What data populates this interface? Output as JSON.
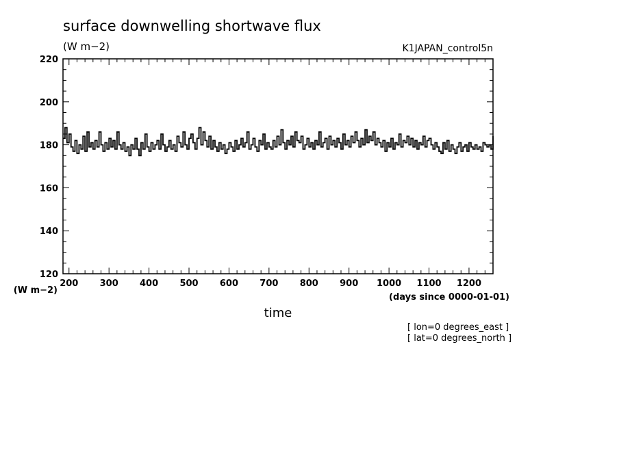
{
  "chart_data": {
    "type": "line",
    "title": "surface downwelling shortwave flux",
    "subtitle_units": "(W m−2)",
    "experiment": "K1JAPAN_control5n",
    "xlabel": "time",
    "x_units": "(days since 0000-01-01)",
    "y_units": "(W m−2)",
    "xlim": [
      185,
      1260
    ],
    "ylim": [
      120,
      220
    ],
    "x_ticks": [
      200,
      300,
      400,
      500,
      600,
      700,
      800,
      900,
      1000,
      1100,
      1200
    ],
    "x_tick_labels": [
      "200",
      "300",
      "400",
      "500",
      "600",
      "700",
      "800",
      "900",
      "1000",
      "1100",
      "1200"
    ],
    "y_ticks": [
      120,
      140,
      160,
      180,
      200,
      220
    ],
    "y_tick_labels": [
      "120",
      "140",
      "160",
      "180",
      "200",
      "220"
    ],
    "grid": false,
    "annotations": [
      "[ lon=0 degrees_east ]",
      "[ lat=0 degrees_north ]"
    ],
    "line_color": "#000000",
    "series": [
      {
        "x": [
          185,
          190,
          195,
          200,
          205,
          210,
          215,
          220,
          225,
          230,
          235,
          240,
          245,
          250,
          255,
          260,
          265,
          270,
          275,
          280,
          285,
          290,
          295,
          300,
          305,
          310,
          315,
          320,
          325,
          330,
          335,
          340,
          345,
          350,
          355,
          360,
          365,
          370,
          375,
          380,
          385,
          390,
          395,
          400,
          405,
          410,
          415,
          420,
          425,
          430,
          435,
          440,
          445,
          450,
          455,
          460,
          465,
          470,
          475,
          480,
          485,
          490,
          495,
          500,
          505,
          510,
          515,
          520,
          525,
          530,
          535,
          540,
          545,
          550,
          555,
          560,
          565,
          570,
          575,
          580,
          585,
          590,
          595,
          600,
          605,
          610,
          615,
          620,
          625,
          630,
          635,
          640,
          645,
          650,
          655,
          660,
          665,
          670,
          675,
          680,
          685,
          690,
          695,
          700,
          705,
          710,
          715,
          720,
          725,
          730,
          735,
          740,
          745,
          750,
          755,
          760,
          765,
          770,
          775,
          780,
          785,
          790,
          795,
          800,
          805,
          810,
          815,
          820,
          825,
          830,
          835,
          840,
          845,
          850,
          855,
          860,
          865,
          870,
          875,
          880,
          885,
          890,
          895,
          900,
          905,
          910,
          915,
          920,
          925,
          930,
          935,
          940,
          945,
          950,
          955,
          960,
          965,
          970,
          975,
          980,
          985,
          990,
          995,
          1000,
          1005,
          1010,
          1015,
          1020,
          1025,
          1030,
          1035,
          1040,
          1045,
          1050,
          1055,
          1060,
          1065,
          1070,
          1075,
          1080,
          1085,
          1090,
          1095,
          1100,
          1105,
          1110,
          1115,
          1120,
          1125,
          1130,
          1135,
          1140,
          1145,
          1150,
          1155,
          1160,
          1165,
          1170,
          1175,
          1180,
          1185,
          1190,
          1195,
          1200,
          1205,
          1210,
          1215,
          1220,
          1225,
          1230,
          1235,
          1240,
          1245,
          1250,
          1255,
          1260
        ],
        "values": [
          183,
          188,
          181,
          185,
          179,
          177,
          182,
          176,
          180,
          178,
          184,
          177,
          186,
          179,
          181,
          178,
          182,
          179,
          186,
          180,
          177,
          181,
          178,
          183,
          179,
          182,
          178,
          186,
          180,
          178,
          181,
          177,
          179,
          175,
          180,
          178,
          183,
          178,
          175,
          181,
          178,
          185,
          179,
          177,
          181,
          178,
          180,
          182,
          178,
          185,
          180,
          177,
          179,
          182,
          178,
          180,
          177,
          184,
          181,
          179,
          186,
          180,
          178,
          183,
          185,
          181,
          178,
          183,
          188,
          180,
          186,
          182,
          179,
          184,
          178,
          182,
          179,
          177,
          181,
          178,
          180,
          176,
          178,
          181,
          179,
          177,
          182,
          178,
          180,
          183,
          179,
          181,
          186,
          178,
          180,
          183,
          179,
          177,
          182,
          180,
          185,
          178,
          181,
          179,
          178,
          182,
          179,
          184,
          180,
          187,
          181,
          178,
          182,
          180,
          184,
          179,
          186,
          182,
          181,
          184,
          178,
          180,
          183,
          179,
          181,
          178,
          182,
          180,
          186,
          179,
          181,
          183,
          178,
          184,
          180,
          182,
          179,
          183,
          181,
          178,
          185,
          180,
          182,
          179,
          184,
          181,
          186,
          182,
          179,
          183,
          180,
          187,
          181,
          184,
          182,
          186,
          180,
          183,
          181,
          179,
          182,
          177,
          181,
          179,
          183,
          178,
          181,
          180,
          185,
          179,
          182,
          181,
          184,
          180,
          183,
          179,
          182,
          178,
          181,
          180,
          184,
          179,
          182,
          183,
          180,
          178,
          181,
          179,
          177,
          176,
          181,
          178,
          182,
          177,
          180,
          178,
          176,
          179,
          181,
          177,
          179,
          180,
          177,
          181,
          179,
          178,
          180,
          178,
          179,
          177,
          181,
          180,
          179,
          180,
          178,
          184
        ]
      }
    ]
  }
}
